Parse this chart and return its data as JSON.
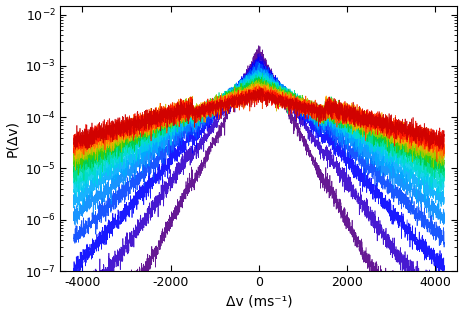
{
  "title": "",
  "xlabel": "Δv (ms⁻¹)",
  "ylabel": "P(Δv)",
  "xlim": [
    -4500,
    4500
  ],
  "ylim_low": 1e-07,
  "ylim_high": 0.015,
  "n_curves": 18,
  "background_color": "#ffffff",
  "colors_rainbow": [
    "#550088",
    "#3300cc",
    "#0000ff",
    "#0044ff",
    "#0088ff",
    "#00aaff",
    "#00ccee",
    "#00ddcc",
    "#00dd88",
    "#00cc44",
    "#44cc00",
    "#99cc00",
    "#ccbb00",
    "#ffaa00",
    "#ff7700",
    "#ff4400",
    "#ff1100",
    "#cc0000"
  ],
  "tick_labelsize": 9,
  "axis_labelsize": 10
}
